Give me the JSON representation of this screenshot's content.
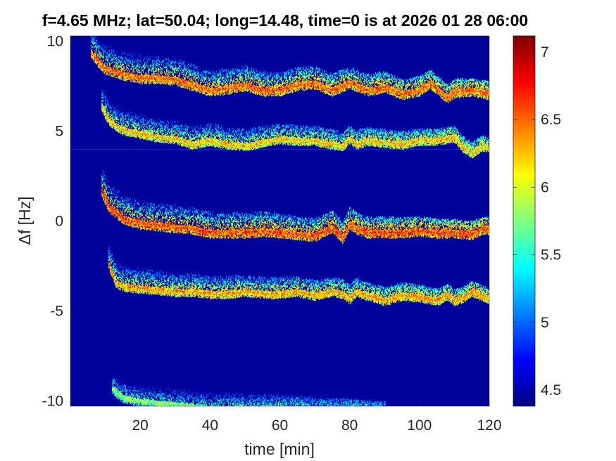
{
  "chart_data": {
    "type": "heatmap",
    "title": "f=4.65 MHz;  lat=50.04; long=14.48, time=0 is at 2026 01 28 06:00",
    "xlabel": "time [min]",
    "ylabel": "Δf [Hz]",
    "xlim": [
      0,
      120
    ],
    "ylim": [
      -10.3,
      10.3
    ],
    "x_ticks": [
      20,
      40,
      60,
      80,
      100,
      120
    ],
    "x_tick_labels": [
      "20",
      "40",
      "60",
      "80",
      "100",
      "120"
    ],
    "y_ticks": [
      10,
      5,
      0,
      -5,
      -10
    ],
    "y_tick_labels": [
      "10",
      "5",
      "0",
      "-5",
      "-10"
    ],
    "colorbar": {
      "range": [
        4.38,
        7.12
      ],
      "ticks": [
        7,
        6.5,
        6,
        5.5,
        5,
        4.5
      ],
      "tick_labels": [
        "7",
        "6.5",
        "6",
        "5.5",
        "5",
        "4.5"
      ],
      "colormap": "jet"
    },
    "background_value": 4.45,
    "constant_line": {
      "y": 4.0,
      "value": 5.0
    },
    "traces": [
      {
        "points": [
          [
            6,
            9.4
          ],
          [
            8,
            8.9
          ],
          [
            10,
            8.5
          ],
          [
            15,
            8.2
          ],
          [
            20,
            8.0
          ],
          [
            25,
            8.0
          ],
          [
            30,
            7.9
          ],
          [
            35,
            7.6
          ],
          [
            40,
            7.3
          ],
          [
            45,
            7.4
          ],
          [
            50,
            7.6
          ],
          [
            55,
            7.3
          ],
          [
            60,
            7.3
          ],
          [
            65,
            7.6
          ],
          [
            70,
            7.7
          ],
          [
            75,
            7.3
          ],
          [
            80,
            7.7
          ],
          [
            85,
            7.3
          ],
          [
            90,
            7.5
          ],
          [
            95,
            7.1
          ],
          [
            100,
            7.3
          ],
          [
            103,
            7.7
          ],
          [
            106,
            7.2
          ],
          [
            108,
            6.9
          ],
          [
            110,
            7.2
          ],
          [
            115,
            7.3
          ],
          [
            120,
            7.1
          ]
        ],
        "peak": 7.0,
        "spread": 0.35
      },
      {
        "points": [
          [
            9,
            6.4
          ],
          [
            11,
            5.6
          ],
          [
            15,
            5.1
          ],
          [
            20,
            4.9
          ],
          [
            25,
            4.7
          ],
          [
            30,
            4.6
          ],
          [
            35,
            4.3
          ],
          [
            40,
            4.5
          ],
          [
            45,
            4.3
          ],
          [
            50,
            4.2
          ],
          [
            55,
            4.4
          ],
          [
            60,
            4.6
          ],
          [
            65,
            4.5
          ],
          [
            70,
            4.5
          ],
          [
            75,
            4.3
          ],
          [
            78,
            4.2
          ],
          [
            80,
            4.6
          ],
          [
            82,
            4.3
          ],
          [
            85,
            4.5
          ],
          [
            90,
            4.4
          ],
          [
            95,
            4.3
          ],
          [
            100,
            4.5
          ],
          [
            105,
            4.5
          ],
          [
            110,
            4.7
          ],
          [
            112,
            4.2
          ],
          [
            115,
            3.8
          ],
          [
            118,
            4.2
          ],
          [
            120,
            4.1
          ]
        ],
        "peak": 6.7,
        "spread": 0.3
      },
      {
        "points": [
          [
            9,
            1.7
          ],
          [
            11,
            0.8
          ],
          [
            15,
            0.2
          ],
          [
            20,
            -0.1
          ],
          [
            25,
            -0.2
          ],
          [
            30,
            -0.3
          ],
          [
            35,
            -0.4
          ],
          [
            40,
            -0.6
          ],
          [
            45,
            -0.6
          ],
          [
            50,
            -0.6
          ],
          [
            55,
            -0.5
          ],
          [
            60,
            -0.6
          ],
          [
            65,
            -0.7
          ],
          [
            70,
            -0.8
          ],
          [
            75,
            -0.3
          ],
          [
            78,
            -0.9
          ],
          [
            80,
            -0.1
          ],
          [
            82,
            -0.4
          ],
          [
            85,
            -0.6
          ],
          [
            90,
            -0.6
          ],
          [
            95,
            -0.6
          ],
          [
            100,
            -0.5
          ],
          [
            105,
            -0.6
          ],
          [
            110,
            -0.6
          ],
          [
            115,
            -0.7
          ],
          [
            118,
            -0.4
          ],
          [
            120,
            -0.4
          ]
        ],
        "peak": 7.1,
        "spread": 0.35
      },
      {
        "points": [
          [
            11,
            -2.4
          ],
          [
            13,
            -3.4
          ],
          [
            15,
            -3.6
          ],
          [
            20,
            -3.7
          ],
          [
            25,
            -3.8
          ],
          [
            30,
            -3.9
          ],
          [
            35,
            -3.9
          ],
          [
            40,
            -4.0
          ],
          [
            45,
            -4.0
          ],
          [
            50,
            -3.9
          ],
          [
            55,
            -4.0
          ],
          [
            60,
            -4.0
          ],
          [
            65,
            -3.9
          ],
          [
            70,
            -4.1
          ],
          [
            75,
            -3.9
          ],
          [
            78,
            -4.0
          ],
          [
            80,
            -4.3
          ],
          [
            82,
            -3.9
          ],
          [
            85,
            -4.1
          ],
          [
            90,
            -4.4
          ],
          [
            95,
            -4.1
          ],
          [
            100,
            -4.2
          ],
          [
            105,
            -4.4
          ],
          [
            108,
            -4.1
          ],
          [
            110,
            -4.4
          ],
          [
            112,
            -4.3
          ],
          [
            115,
            -3.9
          ],
          [
            120,
            -4.3
          ]
        ],
        "peak": 6.8,
        "spread": 0.3
      },
      {
        "points": [
          [
            12,
            -9.3
          ],
          [
            15,
            -9.8
          ],
          [
            20,
            -10.0
          ],
          [
            25,
            -10.1
          ],
          [
            30,
            -10.2
          ],
          [
            35,
            -10.3
          ],
          [
            40,
            -10.4
          ],
          [
            50,
            -10.4
          ],
          [
            60,
            -10.4
          ],
          [
            70,
            -10.5
          ],
          [
            80,
            -10.5
          ],
          [
            90,
            -10.6
          ]
        ],
        "peak": 6.3,
        "spread": 0.3
      }
    ]
  }
}
